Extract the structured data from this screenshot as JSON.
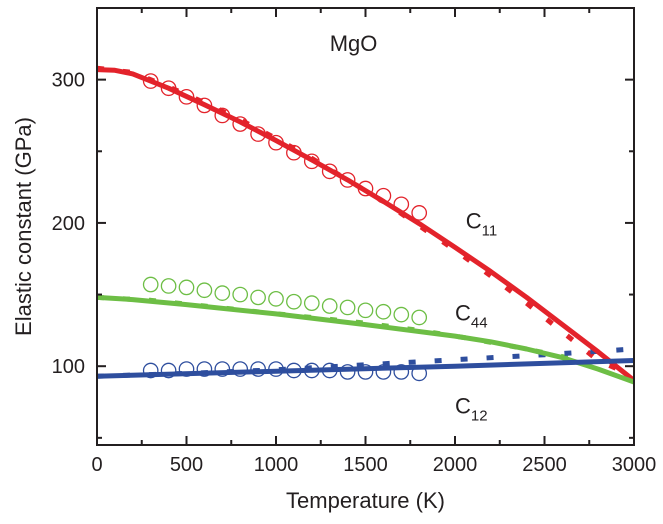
{
  "chart_data": {
    "type": "line",
    "title": "",
    "xlabel": "Temperature (K)",
    "ylabel": "Elastic constant  (GPa)",
    "xlim": [
      0,
      3000
    ],
    "ylim": [
      45,
      350
    ],
    "x_ticks": [
      "0",
      "500",
      "1000",
      "1500",
      "2000",
      "2500",
      "3000"
    ],
    "y_ticks": [
      "100",
      "200",
      "300"
    ],
    "grid": false,
    "annotations": [
      {
        "text": "MgO",
        "at": [
          1300,
          320
        ]
      },
      {
        "text": "C11",
        "main": "C",
        "sub": "11",
        "at": [
          2060,
          196
        ]
      },
      {
        "text": "C44",
        "main": "C",
        "sub": "44",
        "at": [
          2000,
          132
        ]
      },
      {
        "text": "C12",
        "main": "C",
        "sub": "12",
        "at": [
          2000,
          67
        ]
      }
    ],
    "series": [
      {
        "label": "C11",
        "color": "#e3232b",
        "style": "solid",
        "x": [
          0,
          100,
          200,
          300,
          400,
          600,
          800,
          1000,
          1200,
          1400,
          1600,
          1800,
          2000,
          2200,
          2400,
          2600,
          2800,
          3000
        ],
        "y": [
          307,
          306.5,
          304,
          299,
          294,
          282.5,
          270.5,
          257.5,
          244,
          230,
          215,
          199.5,
          183,
          166,
          148,
          129,
          110,
          90
        ]
      },
      {
        "label": "C11",
        "color": "#e3232b",
        "style": "dashed",
        "x": [
          0,
          200,
          400,
          600,
          800,
          1000,
          1200,
          1400,
          1600,
          1800,
          2000,
          2200,
          2400,
          2600,
          2800,
          3000
        ],
        "y": [
          308,
          305,
          295,
          284,
          272,
          259,
          245,
          230,
          215,
          198,
          181,
          163,
          144,
          124,
          104,
          93
        ]
      },
      {
        "label": "C11",
        "color": "#e3232b",
        "style": "open-circle",
        "x": [
          300,
          400,
          500,
          600,
          700,
          800,
          900,
          1000,
          1100,
          1200,
          1300,
          1400,
          1500,
          1600,
          1700,
          1800
        ],
        "y": [
          299,
          294,
          288,
          282,
          275,
          269,
          262,
          256,
          249,
          243,
          236,
          230,
          224,
          219,
          213,
          207
        ]
      },
      {
        "label": "C44",
        "color": "#6dbe45",
        "style": "solid",
        "x": [
          0,
          200,
          500,
          1000,
          1500,
          2000,
          2200,
          2400,
          2600,
          2800,
          3000
        ],
        "y": [
          148,
          146.5,
          143,
          136.5,
          129,
          121,
          117,
          112,
          106,
          98,
          89
        ]
      },
      {
        "label": "C44",
        "color": "#6dbe45",
        "style": "dashed",
        "x": [
          0,
          300,
          600,
          900,
          1200,
          1500,
          1800,
          2100,
          2400,
          2700
        ],
        "y": [
          148,
          146,
          142,
          138,
          134,
          130,
          125,
          119,
          112,
          104
        ]
      },
      {
        "label": "C44",
        "color": "#6dbe45",
        "style": "open-circle",
        "x": [
          300,
          400,
          500,
          600,
          700,
          800,
          900,
          1000,
          1100,
          1200,
          1300,
          1400,
          1500,
          1600,
          1700,
          1800
        ],
        "y": [
          157,
          156,
          155,
          153,
          151,
          150,
          148,
          147,
          145,
          144,
          142,
          141,
          139,
          138,
          136,
          134
        ]
      },
      {
        "label": "C12",
        "color": "#2e4e9e",
        "style": "solid",
        "x": [
          0,
          1000,
          2000,
          3000
        ],
        "y": [
          93,
          96.5,
          100,
          104
        ]
      },
      {
        "label": "C12",
        "color": "#2e4e9e",
        "style": "dashed",
        "x": [
          0,
          500,
          1000,
          1500,
          2000,
          2500,
          3000
        ],
        "y": [
          93,
          95,
          97.5,
          101,
          104.5,
          108,
          112
        ]
      },
      {
        "label": "C12",
        "color": "#2e4e9e",
        "style": "open-circle",
        "x": [
          300,
          400,
          500,
          600,
          700,
          800,
          900,
          1000,
          1100,
          1200,
          1300,
          1400,
          1500,
          1600,
          1700,
          1800
        ],
        "y": [
          97,
          97,
          98,
          98,
          98,
          98,
          98,
          98,
          97,
          97,
          97,
          96,
          96,
          96,
          96,
          95
        ]
      }
    ]
  }
}
